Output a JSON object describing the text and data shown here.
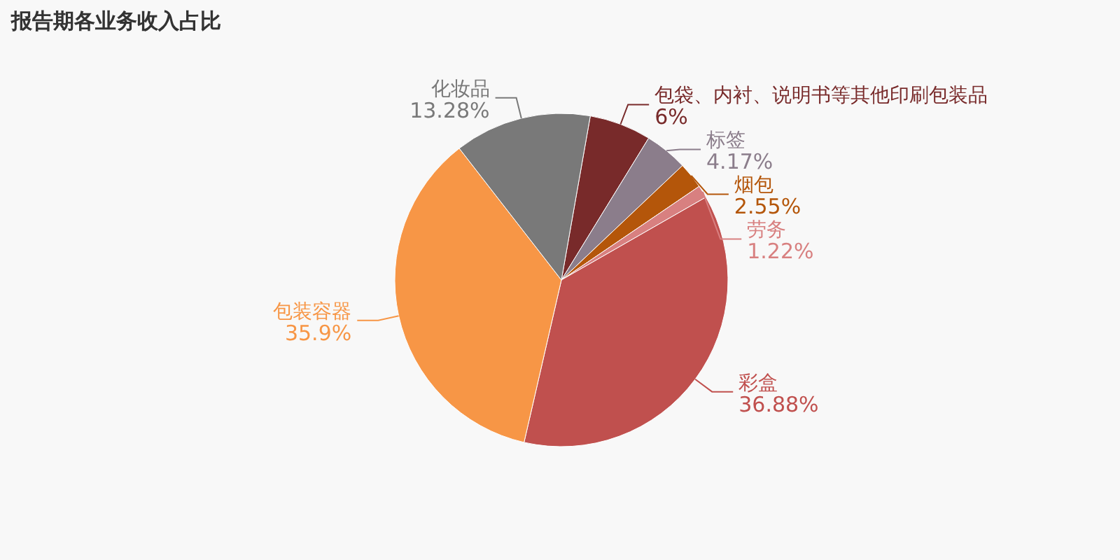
{
  "chart_data": {
    "type": "pie",
    "title": "报告期各业务收入占比",
    "categories": [
      "包袋、内衬、说明书等其他印刷包装品",
      "标签",
      "烟包",
      "劳务",
      "彩盒",
      "包装容器",
      "化妆品"
    ],
    "values": [
      6,
      4.17,
      2.55,
      1.22,
      36.88,
      35.9,
      13.28
    ],
    "value_labels": [
      "6%",
      "4.17%",
      "2.55%",
      "1.22%",
      "36.88%",
      "35.9%",
      "13.28%"
    ],
    "colors": [
      "#782a2a",
      "#8b7d8b",
      "#b4560a",
      "#d88080",
      "#c0504e",
      "#f79646",
      "#797979"
    ]
  }
}
